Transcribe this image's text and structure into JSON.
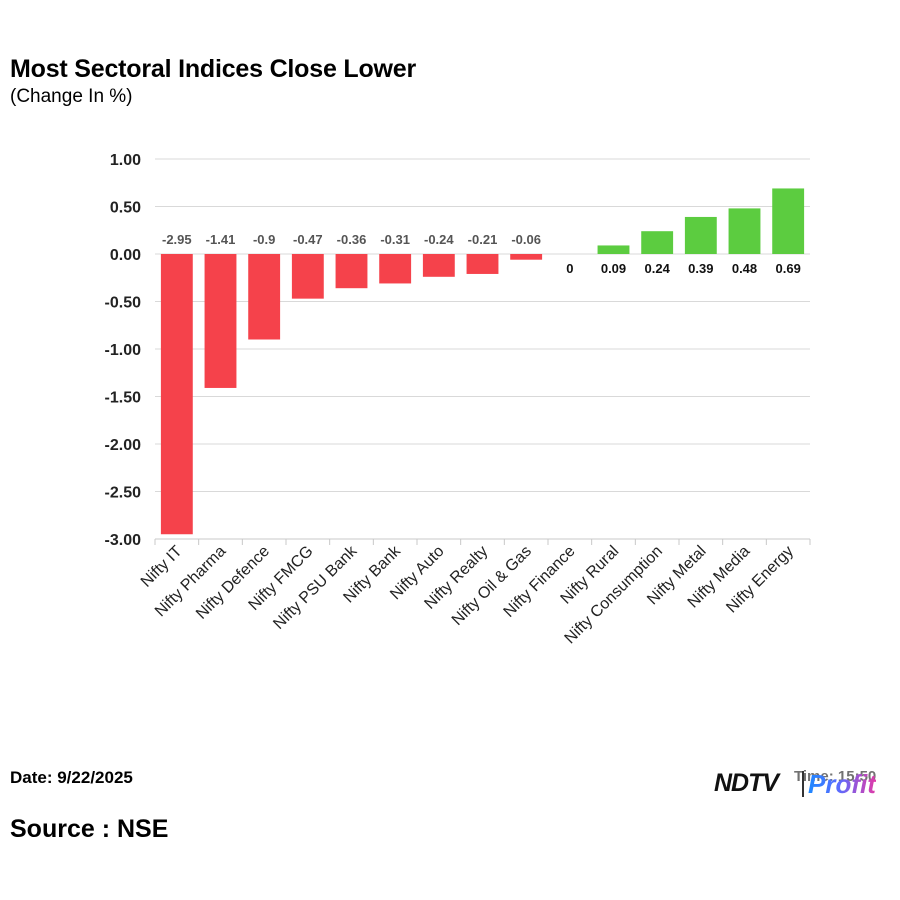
{
  "header": {
    "title": "Most Sectoral Indices Close Lower",
    "subtitle": "(Change In %)"
  },
  "footer": {
    "date": "Date: 9/22/2025",
    "source": "Source : NSE",
    "time_text": "Time: 15:50",
    "logo": {
      "brand": "NDTV",
      "product": "Profit"
    }
  },
  "colors": {
    "negative": "#f5424b",
    "positive": "#5ccc40",
    "grid": "#d9d9d9"
  },
  "chart_data": {
    "type": "bar",
    "title": "Most Sectoral Indices Close Lower",
    "subtitle": "(Change In %)",
    "xlabel": "",
    "ylabel": "",
    "ylim": [
      -3.0,
      1.0
    ],
    "yticks": [
      1.0,
      0.5,
      0.0,
      -0.5,
      -1.0,
      -1.5,
      -2.0,
      -2.5,
      -3.0
    ],
    "ytick_labels": [
      "1.00",
      "0.50",
      "0.00",
      "-0.50",
      "-1.00",
      "-1.50",
      "-2.00",
      "-2.50",
      "-3.00"
    ],
    "grid": true,
    "legend": "none",
    "categories": [
      "Nifty IT",
      "Nifty Pharma",
      "Nifty Defence",
      "Nifty FMCG",
      "Nifty PSU Bank",
      "Nifty Bank",
      "Nifty Auto",
      "Nifty Realty",
      "Nifty Oil & Gas",
      "Nifty Finance",
      "Nifty Rural",
      "Nifty Consumption",
      "Nifty Metal",
      "Nifty Media",
      "Nifty Energy"
    ],
    "values": [
      -2.95,
      -1.41,
      -0.9,
      -0.47,
      -0.36,
      -0.31,
      -0.24,
      -0.21,
      -0.06,
      0,
      0.09,
      0.24,
      0.39,
      0.48,
      0.69
    ],
    "value_labels": [
      "-2.95",
      "-1.41",
      "-0.9",
      "-0.47",
      "-0.36",
      "-0.31",
      "-0.24",
      "-0.21",
      "-0.06",
      "0",
      "0.09",
      "0.24",
      "0.39",
      "0.48",
      "0.69"
    ]
  }
}
